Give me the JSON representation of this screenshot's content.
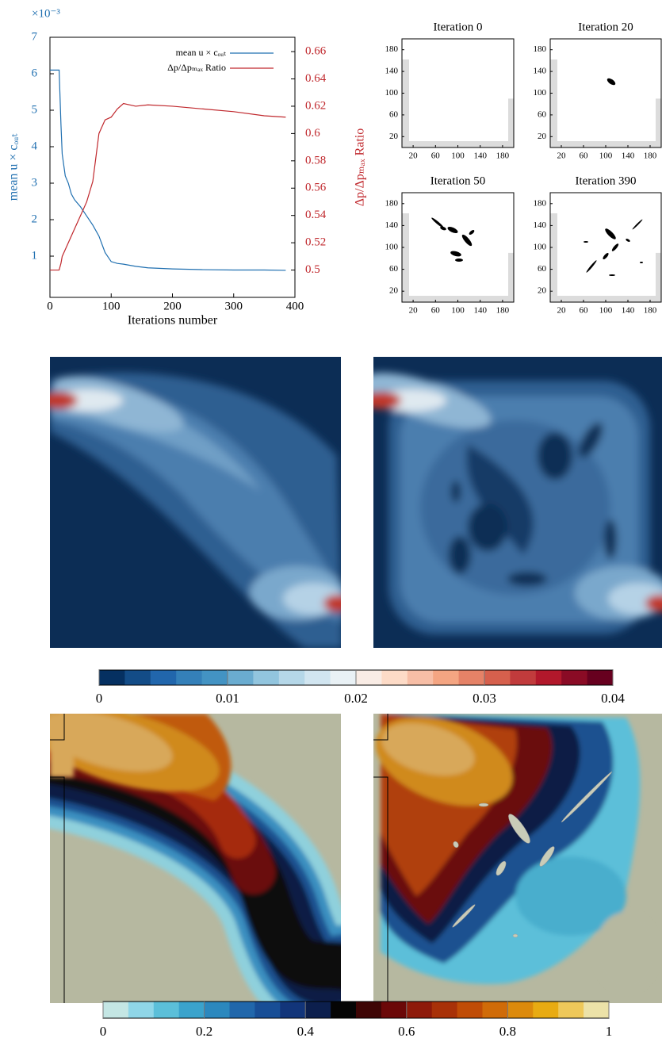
{
  "chart_data": [
    {
      "type": "line",
      "xlabel": "Iterations number",
      "ylabel": "mean u × cₒᵤₜ",
      "y2label": "Δp/Δpₘₐₓ Ratio",
      "y_multiplier": "×10⁻³",
      "xlim": [
        0,
        400
      ],
      "xticks": [
        0,
        100,
        200,
        300,
        400
      ],
      "ylim": [
        -0.13,
        7
      ],
      "yticks": [
        1,
        2,
        3,
        4,
        5,
        6,
        7
      ],
      "y2lim": [
        0.48,
        0.6705
      ],
      "y2ticks": [
        0.5,
        0.52,
        0.54,
        0.56,
        0.58,
        0.6,
        0.62,
        0.64,
        0.66
      ],
      "legend": "upper right",
      "series": [
        {
          "name": "mean u × cₒᵤₜ",
          "color": "#1f6fb0",
          "x": [
            0,
            15,
            18,
            20,
            25,
            30,
            35,
            40,
            50,
            60,
            70,
            80,
            90,
            100,
            110,
            120,
            140,
            160,
            200,
            250,
            300,
            350,
            385
          ],
          "values": [
            6.1,
            6.1,
            4.6,
            3.8,
            3.2,
            3.0,
            2.7,
            2.55,
            2.35,
            2.1,
            1.85,
            1.55,
            1.1,
            0.85,
            0.8,
            0.78,
            0.72,
            0.68,
            0.65,
            0.63,
            0.62,
            0.62,
            0.61
          ]
        },
        {
          "name": "Δp/Δpₘₐₓ Ratio",
          "color": "#c0282d",
          "axis": "y2",
          "x": [
            0,
            15,
            18,
            20,
            25,
            30,
            35,
            40,
            50,
            60,
            70,
            80,
            90,
            100,
            110,
            120,
            140,
            160,
            200,
            250,
            300,
            350,
            385
          ],
          "values": [
            0.5,
            0.5,
            0.505,
            0.51,
            0.515,
            0.52,
            0.525,
            0.53,
            0.54,
            0.55,
            0.565,
            0.6,
            0.61,
            0.612,
            0.618,
            0.622,
            0.62,
            0.621,
            0.62,
            0.618,
            0.616,
            0.613,
            0.612
          ]
        }
      ]
    },
    {
      "type": "image",
      "title": "Iteration 0",
      "xlim": [
        0,
        200
      ],
      "ylim": [
        0,
        200
      ],
      "xticks": [
        20,
        60,
        100,
        140,
        180
      ],
      "yticks": [
        20,
        60,
        100,
        140,
        180
      ]
    },
    {
      "type": "image",
      "title": "Iteration 20",
      "xlim": [
        0,
        200
      ],
      "ylim": [
        0,
        200
      ],
      "xticks": [
        20,
        60,
        100,
        140,
        180
      ],
      "yticks": [
        20,
        60,
        100,
        140,
        180
      ]
    },
    {
      "type": "image",
      "title": "Iteration 50",
      "xlim": [
        0,
        200
      ],
      "ylim": [
        0,
        200
      ],
      "xticks": [
        20,
        60,
        100,
        140,
        180
      ],
      "yticks": [
        20,
        60,
        100,
        140,
        180
      ]
    },
    {
      "type": "image",
      "title": "Iteration 390",
      "xlim": [
        0,
        200
      ],
      "ylim": [
        0,
        200
      ],
      "xticks": [
        20,
        60,
        100,
        140,
        180
      ],
      "yticks": [
        20,
        60,
        100,
        140,
        180
      ]
    },
    {
      "type": "colorbar",
      "lim": [
        0,
        0.04
      ],
      "ticks": [
        0,
        0.01,
        0.02,
        0.03,
        0.04
      ],
      "colors": [
        "#053061",
        "#134c87",
        "#2166ac",
        "#3480b9",
        "#4393c3",
        "#6aacd0",
        "#92c5de",
        "#b5d7e8",
        "#d1e5f0",
        "#e9f1f5",
        "#f9ece5",
        "#fddbc7",
        "#f7bea6",
        "#f4a582",
        "#e58267",
        "#d6604d",
        "#c13b3c",
        "#b2182b",
        "#8a0b25",
        "#67001f"
      ]
    },
    {
      "type": "colorbar",
      "lim": [
        0,
        1
      ],
      "ticks": [
        0,
        0.2,
        0.4,
        0.6,
        0.8,
        1
      ],
      "colors": [
        "#c4e6e4",
        "#8fd6e8",
        "#5bbfd9",
        "#3aa3cc",
        "#2b88be",
        "#2167ab",
        "#184e96",
        "#12357a",
        "#0c1f4d",
        "#050505",
        "#3e0505",
        "#6b0808",
        "#8e1a0a",
        "#a83108",
        "#c04c06",
        "#d06b08",
        "#dc8a0c",
        "#e8ab12",
        "#eec85a",
        "#ece2a8"
      ]
    }
  ]
}
